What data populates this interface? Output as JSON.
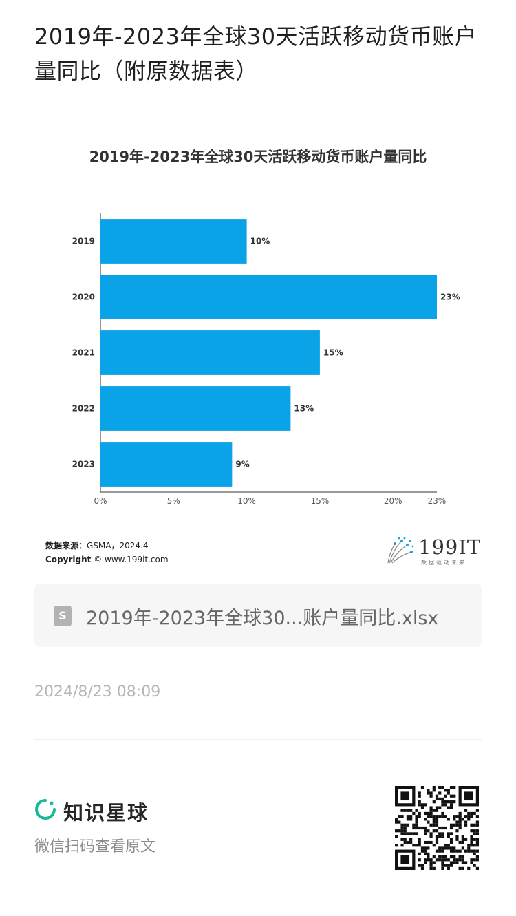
{
  "page": {
    "title": "2019年-2023年全球30天活跃移动货币账户量同比（附原数据表）"
  },
  "chart_data": {
    "type": "bar",
    "orientation": "horizontal",
    "title": "2019年-2023年全球30天活跃移动货币账户量同比",
    "categories": [
      "2019",
      "2020",
      "2021",
      "2022",
      "2023"
    ],
    "values": [
      10,
      23,
      15,
      13,
      9
    ],
    "value_labels": [
      "10%",
      "23%",
      "15%",
      "13%",
      "9%"
    ],
    "x_ticks": [
      0,
      5,
      10,
      15,
      20,
      23
    ],
    "x_tick_labels": [
      "0%",
      "5%",
      "10%",
      "15%",
      "20%",
      "23%"
    ],
    "xlim": [
      0,
      23
    ],
    "grid": false,
    "bar_color": "#0aa3e8"
  },
  "source": {
    "label": "数据来源：",
    "value": "GSMA，2024.4",
    "copyright_label": "Copyright",
    "copyright_value": "© www.199it.com"
  },
  "logo": {
    "text": "199IT",
    "subtitle": "数据驱动未来"
  },
  "file": {
    "name": "2019年-2023年全球30...账户量同比.xlsx",
    "icon": "spreadsheet-file-icon"
  },
  "timestamp": "2024/8/23 08:09",
  "footer": {
    "brand": "知识星球",
    "brand_color": "#16b998",
    "scan_hint": "微信扫码查看原文",
    "qr_icon": "qr-code-icon"
  }
}
